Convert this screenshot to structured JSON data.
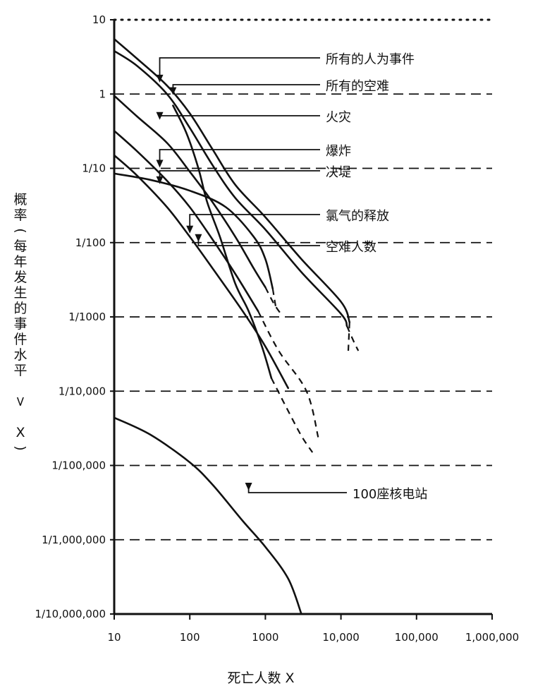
{
  "chart_data": {
    "type": "line",
    "xlabel": "死亡人数 X",
    "ylabel": "概率(每年发生的事件水平 > X)",
    "x_scale": "log",
    "y_scale": "log",
    "xlim": [
      10,
      1000000
    ],
    "ylim": [
      1e-07,
      10
    ],
    "x_ticks": [
      {
        "value": 10,
        "label": "10"
      },
      {
        "value": 100,
        "label": "100"
      },
      {
        "value": 1000,
        "label": "1000"
      },
      {
        "value": 10000,
        "label": "10,000"
      },
      {
        "value": 100000,
        "label": "100,000"
      },
      {
        "value": 1000000,
        "label": "1,000,000"
      }
    ],
    "y_ticks": [
      {
        "value": 10,
        "label": "10"
      },
      {
        "value": 1,
        "label": "1"
      },
      {
        "value": 0.1,
        "label": "1/10"
      },
      {
        "value": 0.01,
        "label": "1/100"
      },
      {
        "value": 0.001,
        "label": "1/1000"
      },
      {
        "value": 0.0001,
        "label": "1/10,000"
      },
      {
        "value": 1e-05,
        "label": "1/100,000"
      },
      {
        "value": 1e-06,
        "label": "1/1,000,000"
      },
      {
        "value": 1e-07,
        "label": "1/10,000,000"
      }
    ],
    "grid": "dashed horizontal at each y tick",
    "series": [
      {
        "name": "所有的人为事件",
        "points": [
          [
            10,
            5.5
          ],
          [
            20,
            3.0
          ],
          [
            50,
            1.3
          ],
          [
            100,
            0.55
          ],
          [
            200,
            0.18
          ],
          [
            400,
            0.06
          ],
          [
            1000,
            0.022
          ],
          [
            3000,
            0.006
          ],
          [
            10000,
            0.0016
          ],
          [
            13000,
            0.00085
          ]
        ],
        "dashed_tail": [
          [
            13000,
            0.00085
          ],
          [
            12500,
            0.00035
          ]
        ]
      },
      {
        "name": "所有的空难",
        "points": [
          [
            10,
            3.8
          ],
          [
            20,
            2.4
          ],
          [
            50,
            1.0
          ],
          [
            100,
            0.35
          ],
          [
            200,
            0.11
          ],
          [
            400,
            0.04
          ],
          [
            1000,
            0.015
          ],
          [
            3000,
            0.004
          ],
          [
            10000,
            0.0011
          ],
          [
            12000,
            0.00075
          ]
        ],
        "dashed_tail": [
          [
            12000,
            0.00075
          ],
          [
            15000,
            0.00045
          ],
          [
            17000,
            0.00035
          ]
        ]
      },
      {
        "name": "火灾",
        "points": [
          [
            10,
            0.95
          ],
          [
            20,
            0.5
          ],
          [
            50,
            0.22
          ],
          [
            100,
            0.09
          ],
          [
            200,
            0.035
          ],
          [
            400,
            0.012
          ],
          [
            700,
            0.0045
          ],
          [
            1000,
            0.0025
          ]
        ],
        "dashed_tail": [
          [
            1000,
            0.0025
          ],
          [
            1300,
            0.0015
          ],
          [
            1600,
            0.0011
          ]
        ]
      },
      {
        "name": "爆炸",
        "points": [
          [
            10,
            0.32
          ],
          [
            20,
            0.17
          ],
          [
            50,
            0.068
          ],
          [
            100,
            0.03
          ],
          [
            200,
            0.011
          ],
          [
            400,
            0.0038
          ],
          [
            800,
            0.0012
          ]
        ],
        "dashed_tail": [
          [
            800,
            0.0012
          ],
          [
            1500,
            0.00035
          ],
          [
            3500,
            0.0001
          ],
          [
            5000,
            2.4e-05
          ]
        ]
      },
      {
        "name": "决堤",
        "points": [
          [
            10,
            0.15
          ],
          [
            20,
            0.08
          ],
          [
            50,
            0.03
          ],
          [
            100,
            0.012
          ],
          [
            200,
            0.0045
          ],
          [
            500,
            0.0012
          ],
          [
            1000,
            0.0004
          ],
          [
            2000,
            0.00011
          ]
        ],
        "dashed_tail": []
      },
      {
        "name": "氯气的释放",
        "points": [
          [
            10,
            0.085
          ],
          [
            30,
            0.07
          ],
          [
            100,
            0.05
          ],
          [
            300,
            0.03
          ],
          [
            700,
            0.012
          ],
          [
            1000,
            0.006
          ],
          [
            1250,
            0.0024
          ]
        ],
        "dashed_tail": [
          [
            1250,
            0.0024
          ],
          [
            1350,
            0.0015
          ],
          [
            1400,
            0.0012
          ]
        ]
      },
      {
        "name": "空难人数",
        "points": [
          [
            60,
            0.7
          ],
          [
            90,
            0.3
          ],
          [
            130,
            0.1
          ],
          [
            170,
            0.035
          ],
          [
            250,
            0.012
          ],
          [
            400,
            0.0028
          ],
          [
            600,
            0.0012
          ],
          [
            900,
            0.0004
          ],
          [
            1200,
            0.00015
          ]
        ],
        "dashed_tail": [
          [
            1200,
            0.00015
          ],
          [
            1900,
            6e-05
          ],
          [
            3000,
            2.5e-05
          ],
          [
            4200,
            1.5e-05
          ]
        ]
      },
      {
        "name": "100座核电站",
        "points": [
          [
            10,
            4.4e-05
          ],
          [
            30,
            2.6e-05
          ],
          [
            100,
            1.1e-05
          ],
          [
            200,
            5.5e-06
          ],
          [
            500,
            1.8e-06
          ],
          [
            1000,
            8e-07
          ],
          [
            2000,
            3e-07
          ],
          [
            3000,
            1e-07
          ]
        ],
        "dashed_tail": []
      }
    ],
    "annotations": [
      {
        "text": "所有的人为事件",
        "series": "所有的人为事件",
        "at": [
          40,
          1.4
        ]
      },
      {
        "text": "所有的空难",
        "series": "所有的空难",
        "at": [
          60,
          0.95
        ]
      },
      {
        "text": "火灾",
        "series": "火灾",
        "at": [
          40,
          0.44
        ]
      },
      {
        "text": "爆炸",
        "series": "爆炸",
        "at": [
          40,
          0.1
        ]
      },
      {
        "text": "决堤",
        "series": "决堤",
        "at": [
          40,
          0.06
        ]
      },
      {
        "text": "氯气的释放",
        "series": "氯气的释放",
        "at": [
          100,
          0.013
        ]
      },
      {
        "text": "空难人数",
        "series": "空难人数",
        "at": [
          130,
          0.01
        ]
      },
      {
        "text": "100座核电站",
        "series": "100座核电站",
        "at": [
          600,
          4.5e-06
        ]
      }
    ]
  }
}
